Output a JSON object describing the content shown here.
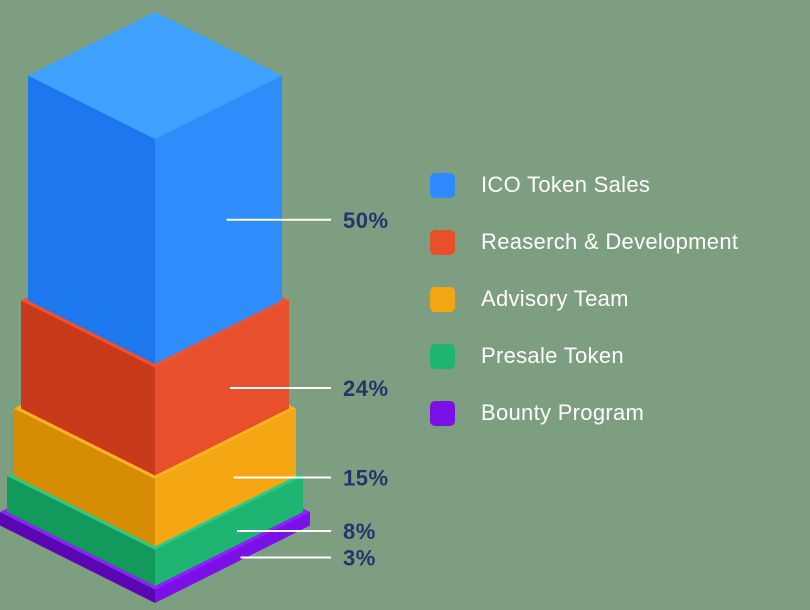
{
  "chart_data": {
    "type": "bar",
    "subtype": "isometric-stacked-column",
    "title": "",
    "unit": "%",
    "total": 100,
    "categories": [
      "ICO Token Sales",
      "Reaserch & Development",
      "Advisory Team",
      "Presale Token",
      "Bounty Program"
    ],
    "values": [
      50,
      24,
      15,
      8,
      3
    ],
    "annotations": [
      "50%",
      "24%",
      "15%",
      "8%",
      "3%"
    ],
    "legend_position": "right",
    "background": "#7e9e81",
    "label_color": "#22366b",
    "leader_line_color": "#ffffff",
    "legend_text_color": "#ffffff",
    "segments": [
      {
        "label": "ICO Token Sales",
        "value": 50,
        "pct_label": "50%",
        "color": "#2f8bfd",
        "face_top": "#3fa2ff",
        "face_left": "#1d78ef",
        "face_right": "#2f8cfb"
      },
      {
        "label": "Reaserch & Development",
        "value": 24,
        "pct_label": "24%",
        "color": "#e8502b",
        "face_top": "#f1512c",
        "face_left": "#c93a1a",
        "face_right": "#e8502d"
      },
      {
        "label": "Advisory Team",
        "value": 15,
        "pct_label": "15%",
        "color": "#f2a712",
        "face_top": "#ffb41f",
        "face_left": "#d68d05",
        "face_right": "#f4a713"
      },
      {
        "label": "Presale Token",
        "value": 8,
        "pct_label": "8%",
        "color": "#1eb573",
        "face_top": "#2cc97f",
        "face_left": "#12995c",
        "face_right": "#1eb573"
      },
      {
        "label": "Bounty Program",
        "value": 3,
        "pct_label": "3%",
        "color": "#7b0fe8",
        "face_top": "#8c22fa",
        "face_left": "#5a07b2",
        "face_right": "#7b0fe8"
      }
    ]
  }
}
